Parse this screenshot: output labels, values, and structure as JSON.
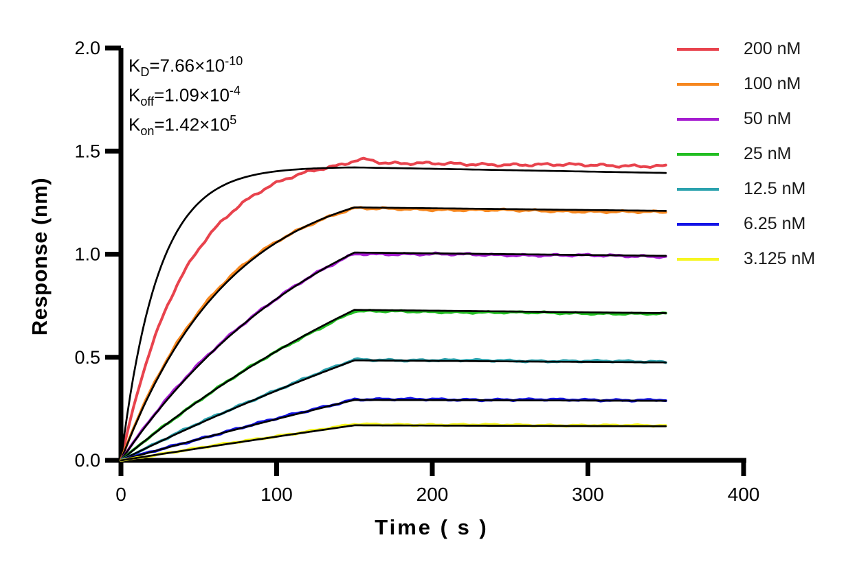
{
  "figure": {
    "background": "#FFFFFF"
  },
  "chart_data": {
    "type": "line",
    "title": "",
    "xlabel": "Time ( s )",
    "ylabel": "Response (nm)",
    "x_range": [
      0,
      400
    ],
    "y_range": [
      0,
      2
    ],
    "x_ticks": [
      {
        "v": 0,
        "label": "0"
      },
      {
        "v": 100,
        "label": "100"
      },
      {
        "v": 200,
        "label": "200"
      },
      {
        "v": 300,
        "label": "300"
      },
      {
        "v": 400,
        "label": "400"
      }
    ],
    "y_ticks": [
      {
        "v": 0,
        "label": "0.0"
      },
      {
        "v": 0.5,
        "label": "0.5"
      },
      {
        "v": 1,
        "label": "1.0"
      },
      {
        "v": 1.5,
        "label": "1.5"
      },
      {
        "v": 2,
        "label": "2.0"
      }
    ],
    "grid": false,
    "legend_position": "top-right",
    "axis_color": "#000000",
    "fit_line_color": "#000000",
    "phases": {
      "association_start_s": 0,
      "association_end_s": 150,
      "dissociation_end_s": 350
    },
    "kinetic_constants": [
      {
        "symbol": "K",
        "subscript": "D",
        "value": "=7.66×10",
        "exponent": "-10"
      },
      {
        "symbol": "K",
        "subscript": "off",
        "value": "=1.09×10",
        "exponent": "-4"
      },
      {
        "symbol": "K",
        "subscript": "on",
        "value": "=1.42×10",
        "exponent": "5"
      }
    ],
    "sample_times_s": [
      0,
      25,
      50,
      75,
      100,
      125,
      150,
      200,
      250,
      300,
      350
    ],
    "series": [
      {
        "label": "200 nM",
        "color": "#E8434D",
        "response_nm": [
          0,
          0.66,
          1.03,
          1.23,
          1.35,
          1.41,
          1.44,
          1.44,
          1.437,
          1.432,
          1.428
        ],
        "data_curve": {
          "k_obs": 0.0235,
          "r_assoc_end": 1.442,
          "r_end": 1.428,
          "overshoot": 0.02,
          "noise": 0.008
        },
        "fit_curve": {
          "k_obs": 0.042,
          "r_assoc_end": 1.421,
          "r_end": 1.394
        }
      },
      {
        "label": "100 nM",
        "color": "#F6871F",
        "response_nm": [
          0,
          0.42,
          0.71,
          0.91,
          1.05,
          1.15,
          1.222,
          1.217,
          1.212,
          1.208,
          1.203
        ],
        "data_curve": {
          "k_obs": 0.015,
          "r_assoc_end": 1.222,
          "r_end": 1.203,
          "overshoot": 0,
          "noise": 0.006
        },
        "fit_curve": {
          "k_obs": 0.0143,
          "r_assoc_end": 1.227,
          "r_end": 1.21
        }
      },
      {
        "label": "50 nM",
        "color": "#A51CD0",
        "response_nm": [
          0,
          0.26,
          0.47,
          0.64,
          0.79,
          0.91,
          1.003,
          1.0,
          0.997,
          0.993,
          0.99
        ],
        "data_curve": {
          "k_obs": 0.0076,
          "r_assoc_end": 1.003,
          "r_end": 0.99,
          "overshoot": 0,
          "noise": 0.006
        },
        "fit_curve": {
          "k_obs": 0.0072,
          "r_assoc_end": 1.008,
          "r_end": 0.992
        }
      },
      {
        "label": "25 nM",
        "color": "#22BE22",
        "response_nm": [
          0,
          0.15,
          0.29,
          0.41,
          0.53,
          0.63,
          0.724,
          0.72,
          0.717,
          0.713,
          0.71
        ],
        "data_curve": {
          "k_obs": 0.0039,
          "r_assoc_end": 0.724,
          "r_end": 0.71,
          "overshoot": 0,
          "noise": 0.005
        },
        "fit_curve": {
          "k_obs": 0.00365,
          "r_assoc_end": 0.73,
          "r_end": 0.714
        }
      },
      {
        "label": "12.5 nM",
        "color": "#2BA2AE",
        "response_nm": [
          0,
          0.09,
          0.18,
          0.26,
          0.34,
          0.42,
          0.488,
          0.485,
          0.483,
          0.48,
          0.478
        ],
        "data_curve": {
          "k_obs": 0.002,
          "r_assoc_end": 0.488,
          "r_end": 0.478,
          "overshoot": 0,
          "noise": 0.005
        },
        "fit_curve": {
          "k_obs": 0.00188,
          "r_assoc_end": 0.485,
          "r_end": 0.475
        }
      },
      {
        "label": "6.25 nM",
        "color": "#1414E6",
        "response_nm": [
          0,
          0.05,
          0.1,
          0.15,
          0.2,
          0.25,
          0.296,
          0.295,
          0.294,
          0.293,
          0.292
        ],
        "data_curve": {
          "k_obs": 0.00105,
          "r_assoc_end": 0.296,
          "r_end": 0.292,
          "overshoot": 0,
          "noise": 0.005
        },
        "fit_curve": {
          "k_obs": 0.00099,
          "r_assoc_end": 0.293,
          "r_end": 0.289
        }
      },
      {
        "label": "3.125 nM",
        "color": "#F6F621",
        "response_nm": [
          0,
          0.03,
          0.06,
          0.09,
          0.12,
          0.15,
          0.174,
          0.173,
          0.171,
          0.17,
          0.168
        ],
        "data_curve": {
          "k_obs": 0.00056,
          "r_assoc_end": 0.174,
          "r_end": 0.168,
          "overshoot": 0,
          "noise": 0.004
        },
        "fit_curve": {
          "k_obs": 0.00054,
          "r_assoc_end": 0.17,
          "r_end": 0.165
        }
      }
    ]
  }
}
